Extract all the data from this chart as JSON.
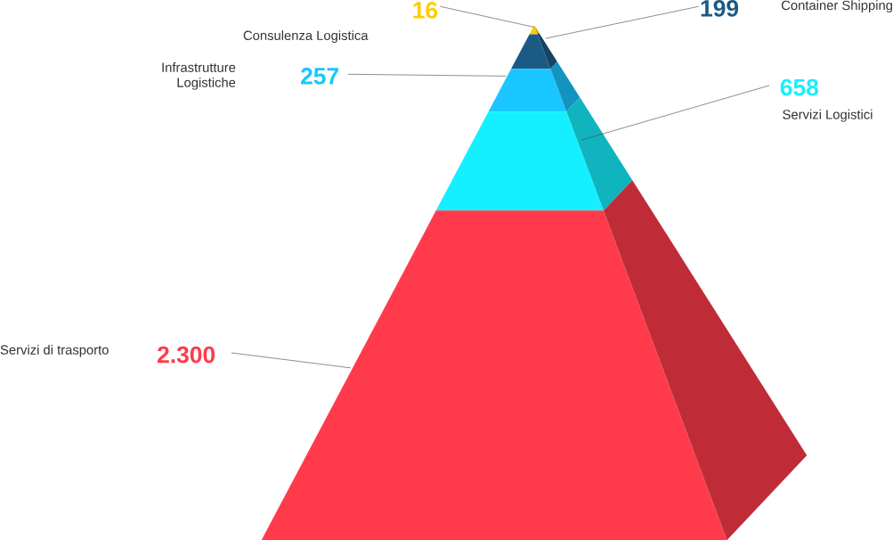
{
  "chart_data": {
    "type": "other",
    "categories": [
      "Consulenza Logistica",
      "Container Shipping",
      "Infrastrutture Logistiche",
      "Servizi Logistici",
      "Servizi di trasporto"
    ],
    "values": [
      16,
      199,
      257,
      658,
      2300
    ],
    "colors": [
      "#ffcc00",
      "#1a5a85",
      "#1ac6ff",
      "#14f0ff",
      "#ff3b4b"
    ],
    "value_labels": [
      "16",
      "199",
      "257",
      "658",
      "2.300"
    ],
    "data_labels": true
  }
}
